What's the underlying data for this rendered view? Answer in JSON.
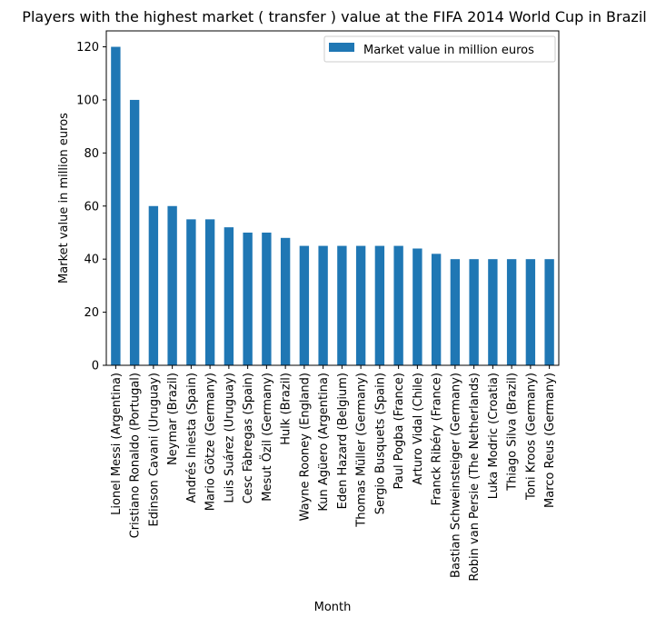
{
  "chart_data": {
    "type": "bar",
    "title": "Players with the highest market ( transfer ) value at the FIFA 2014 World Cup in Brazil",
    "xlabel": "Month",
    "ylabel": "Market value in million euros",
    "ylim": [
      0,
      126
    ],
    "yticks": [
      0,
      20,
      40,
      60,
      80,
      100,
      120
    ],
    "grid": false,
    "legend_position": "top-right",
    "bar_color": "#1f77b4",
    "categories": [
      "Lionel Messi (Argentina)",
      "Cristiano Ronaldo (Portugal)",
      "Edinson Cavani (Uruguay)",
      "Neymar (Brazil)",
      "Andrés Iniesta (Spain)",
      "Mario Götze (Germany)",
      "Luis Suárez (Uruguay)",
      "Cesc Fàbregas (Spain)",
      "Mesut Özil (Germany)",
      "Hulk (Brazil)",
      "Wayne Rooney (England)",
      "Kun Agüero (Argentina)",
      "Eden Hazard (Belgium)",
      "Thomas Müller (Germany)",
      "Sergio Busquets (Spain)",
      "Paul Pogba (France)",
      "Arturo Vidal (Chile)",
      "Franck Ribéry (France)",
      "Bastian Schweinsteiger (Germany)",
      "Robin van Persie (The Netherlands)",
      "Luka Modric (Croatia)",
      "Thiago Silva (Brazil)",
      "Toni Kroos (Germany)",
      "Marco Reus (Germany)"
    ],
    "series": [
      {
        "name": "Market value in million euros",
        "values": [
          120,
          100,
          60,
          60,
          55,
          55,
          52,
          50,
          50,
          48,
          45,
          45,
          45,
          45,
          45,
          45,
          44,
          42,
          40,
          40,
          40,
          40,
          40,
          40
        ]
      }
    ]
  }
}
